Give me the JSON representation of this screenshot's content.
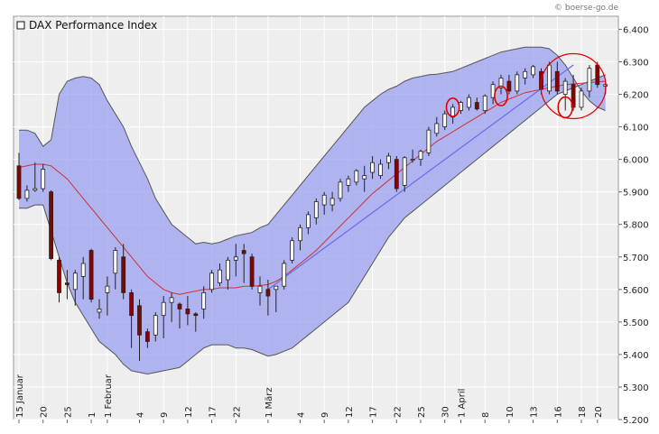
{
  "copyright": "© boerse-go.de",
  "chart_data": {
    "type": "candlestick",
    "title": "DAX Performance Index",
    "ylim": [
      5200,
      6440
    ],
    "y_ticks": [
      "5.200",
      "5.300",
      "5.400",
      "5.500",
      "5.600",
      "5.700",
      "5.800",
      "5.900",
      "6.000",
      "6.100",
      "6.200",
      "6.300",
      "6.400"
    ],
    "y_tick_values": [
      5200,
      5300,
      5400,
      5500,
      5600,
      5700,
      5800,
      5900,
      6000,
      6100,
      6200,
      6300,
      6400
    ],
    "x_labels": [
      {
        "i": 0,
        "label": "15 Januar"
      },
      {
        "i": 3,
        "label": "20"
      },
      {
        "i": 6,
        "label": "25"
      },
      {
        "i": 9,
        "label": "1"
      },
      {
        "i": 11,
        "label": "1 Februar"
      },
      {
        "i": 15,
        "label": "4"
      },
      {
        "i": 18,
        "label": "9"
      },
      {
        "i": 21,
        "label": "12"
      },
      {
        "i": 24,
        "label": "17"
      },
      {
        "i": 27,
        "label": "22"
      },
      {
        "i": 31,
        "label": "1 März"
      },
      {
        "i": 35,
        "label": "4"
      },
      {
        "i": 38,
        "label": "9"
      },
      {
        "i": 41,
        "label": "12"
      },
      {
        "i": 44,
        "label": "17"
      },
      {
        "i": 47,
        "label": "22"
      },
      {
        "i": 50,
        "label": "25"
      },
      {
        "i": 53,
        "label": "30"
      },
      {
        "i": 55,
        "label": "1 April"
      },
      {
        "i": 58,
        "label": "8"
      },
      {
        "i": 61,
        "label": "10"
      },
      {
        "i": 64,
        "label": "13"
      },
      {
        "i": 67,
        "label": "16"
      },
      {
        "i": 70,
        "label": "18"
      },
      {
        "i": 72,
        "label": "20"
      }
    ],
    "series": [
      {
        "kind": "ohlc",
        "up_color": "#ffffff",
        "down_color": "#8b0000",
        "values": [
          [
            5980,
            6020,
            5875,
            5880
          ],
          [
            5880,
            5920,
            5870,
            5905
          ],
          [
            5905,
            5990,
            5900,
            5910
          ],
          [
            5910,
            5985,
            5900,
            5970
          ],
          [
            5900,
            5905,
            5690,
            5695
          ],
          [
            5690,
            5700,
            5560,
            5590
          ],
          [
            5620,
            5660,
            5570,
            5615
          ],
          [
            5600,
            5660,
            5550,
            5650
          ],
          [
            5640,
            5700,
            5570,
            5680
          ],
          [
            5720,
            5725,
            5560,
            5570
          ],
          [
            5530,
            5570,
            5510,
            5540
          ],
          [
            5590,
            5640,
            5520,
            5610
          ],
          [
            5650,
            5730,
            5600,
            5720
          ],
          [
            5700,
            5740,
            5570,
            5590
          ],
          [
            5590,
            5600,
            5420,
            5520
          ],
          [
            5550,
            5570,
            5380,
            5460
          ],
          [
            5470,
            5480,
            5420,
            5440
          ],
          [
            5460,
            5530,
            5440,
            5520
          ],
          [
            5520,
            5580,
            5450,
            5560
          ],
          [
            5560,
            5590,
            5500,
            5575
          ],
          [
            5555,
            5560,
            5480,
            5540
          ],
          [
            5540,
            5580,
            5490,
            5525
          ],
          [
            5525,
            5530,
            5470,
            5520
          ],
          [
            5540,
            5610,
            5510,
            5590
          ],
          [
            5600,
            5660,
            5590,
            5650
          ],
          [
            5620,
            5680,
            5610,
            5660
          ],
          [
            5630,
            5700,
            5600,
            5690
          ],
          [
            5690,
            5740,
            5640,
            5700
          ],
          [
            5720,
            5740,
            5620,
            5710
          ],
          [
            5700,
            5710,
            5600,
            5610
          ],
          [
            5590,
            5640,
            5550,
            5610
          ],
          [
            5600,
            5630,
            5520,
            5580
          ],
          [
            5600,
            5610,
            5530,
            5610
          ],
          [
            5610,
            5690,
            5600,
            5680
          ],
          [
            5690,
            5760,
            5680,
            5750
          ],
          [
            5750,
            5800,
            5720,
            5790
          ],
          [
            5790,
            5840,
            5770,
            5830
          ],
          [
            5820,
            5880,
            5800,
            5870
          ],
          [
            5860,
            5900,
            5830,
            5890
          ],
          [
            5860,
            5900,
            5840,
            5880
          ],
          [
            5880,
            5940,
            5870,
            5930
          ],
          [
            5920,
            5950,
            5900,
            5940
          ],
          [
            5930,
            5970,
            5920,
            5965
          ],
          [
            5940,
            5980,
            5900,
            5950
          ],
          [
            5960,
            6010,
            5940,
            5990
          ],
          [
            5950,
            6000,
            5940,
            5985
          ],
          [
            5990,
            6020,
            5970,
            6010
          ],
          [
            6000,
            6010,
            5900,
            5910
          ],
          [
            5920,
            6010,
            5900,
            6005
          ],
          [
            6000,
            6030,
            5990,
            6000
          ],
          [
            6000,
            6030,
            5980,
            6025
          ],
          [
            6020,
            6100,
            6010,
            6090
          ],
          [
            6080,
            6130,
            6070,
            6110
          ],
          [
            6100,
            6150,
            6090,
            6140
          ],
          [
            6130,
            6170,
            6110,
            6160
          ],
          [
            6150,
            6180,
            6140,
            6175
          ],
          [
            6160,
            6200,
            6150,
            6190
          ],
          [
            6175,
            6190,
            6150,
            6155
          ],
          [
            6150,
            6200,
            6140,
            6195
          ],
          [
            6190,
            6240,
            6170,
            6230
          ],
          [
            6220,
            6260,
            6200,
            6250
          ],
          [
            6240,
            6260,
            6200,
            6210
          ],
          [
            6210,
            6270,
            6200,
            6260
          ],
          [
            6250,
            6280,
            6230,
            6270
          ],
          [
            6260,
            6290,
            6250,
            6285
          ],
          [
            6270,
            6280,
            6200,
            6215
          ],
          [
            6210,
            6300,
            6200,
            6290
          ],
          [
            6270,
            6300,
            6200,
            6210
          ],
          [
            6200,
            6250,
            6150,
            6240
          ],
          [
            6230,
            6260,
            6150,
            6160
          ],
          [
            6160,
            6220,
            6150,
            6210
          ],
          [
            6210,
            6290,
            6190,
            6280
          ],
          [
            6290,
            6300,
            6220,
            6230
          ],
          [
            6225,
            6235,
            6200,
            6230
          ]
        ]
      },
      {
        "name": "",
        "kind": "bollinger_upper",
        "color": "#555555",
        "values": [
          6090,
          6090,
          6080,
          6040,
          6060,
          6200,
          6240,
          6250,
          6255,
          6250,
          6230,
          6180,
          6140,
          6100,
          6040,
          5990,
          5940,
          5880,
          5840,
          5800,
          5780,
          5760,
          5740,
          5745,
          5740,
          5745,
          5755,
          5765,
          5770,
          5775,
          5790,
          5800,
          5830,
          5860,
          5890,
          5920,
          5950,
          5980,
          6010,
          6040,
          6070,
          6100,
          6130,
          6160,
          6180,
          6200,
          6215,
          6225,
          6240,
          6250,
          6255,
          6260,
          6262,
          6266,
          6270,
          6280,
          6290,
          6300,
          6310,
          6320,
          6330,
          6335,
          6340,
          6345,
          6345,
          6345,
          6340,
          6320,
          6290,
          6250,
          6210,
          6180,
          6160,
          6150
        ]
      },
      {
        "name": "",
        "kind": "bollinger_lower",
        "color": "#555555",
        "values": [
          5850,
          5850,
          5860,
          5860,
          5780,
          5700,
          5620,
          5560,
          5520,
          5480,
          5440,
          5420,
          5400,
          5370,
          5350,
          5345,
          5340,
          5345,
          5350,
          5355,
          5360,
          5380,
          5400,
          5420,
          5430,
          5430,
          5430,
          5420,
          5420,
          5415,
          5405,
          5395,
          5400,
          5410,
          5420,
          5440,
          5460,
          5480,
          5500,
          5520,
          5540,
          5560,
          5600,
          5640,
          5680,
          5720,
          5760,
          5790,
          5820,
          5840,
          5860,
          5880,
          5900,
          5920,
          5940,
          5960,
          5980,
          6000,
          6020,
          6040,
          6060,
          6080,
          6100,
          6120,
          6140,
          6160,
          6180,
          6200,
          6210,
          6220,
          6230,
          6240,
          6250,
          6260
        ]
      },
      {
        "name": "",
        "kind": "sma",
        "color": "#cc3333",
        "values": [
          5975,
          5980,
          5985,
          5985,
          5980,
          5960,
          5940,
          5910,
          5880,
          5850,
          5820,
          5790,
          5760,
          5730,
          5700,
          5670,
          5640,
          5620,
          5600,
          5590,
          5585,
          5590,
          5595,
          5600,
          5600,
          5605,
          5605,
          5605,
          5610,
          5610,
          5612,
          5615,
          5625,
          5640,
          5660,
          5680,
          5700,
          5720,
          5745,
          5770,
          5795,
          5820,
          5845,
          5870,
          5895,
          5915,
          5935,
          5955,
          5975,
          5995,
          6015,
          6035,
          6055,
          6070,
          6085,
          6100,
          6115,
          6130,
          6145,
          6160,
          6175,
          6185,
          6195,
          6205,
          6210,
          6215,
          6220,
          6225,
          6230,
          6232,
          6234,
          6236,
          6238,
          6240
        ]
      }
    ],
    "trendline": {
      "color": "#6f6ff0",
      "from": [
        31,
        5600
      ],
      "to": [
        69,
        6290
      ]
    },
    "annotations": [
      {
        "kind": "ellipse",
        "i": 54,
        "v": 6160,
        "ri": 0.8,
        "rv": 28
      },
      {
        "kind": "ellipse",
        "i": 60,
        "v": 6195,
        "ri": 0.8,
        "rv": 30
      },
      {
        "kind": "ellipse",
        "i": 68,
        "v": 6160,
        "ri": 0.9,
        "rv": 32
      },
      {
        "kind": "circle",
        "i": 69,
        "v": 6225,
        "r": 36
      }
    ],
    "grid": true
  }
}
